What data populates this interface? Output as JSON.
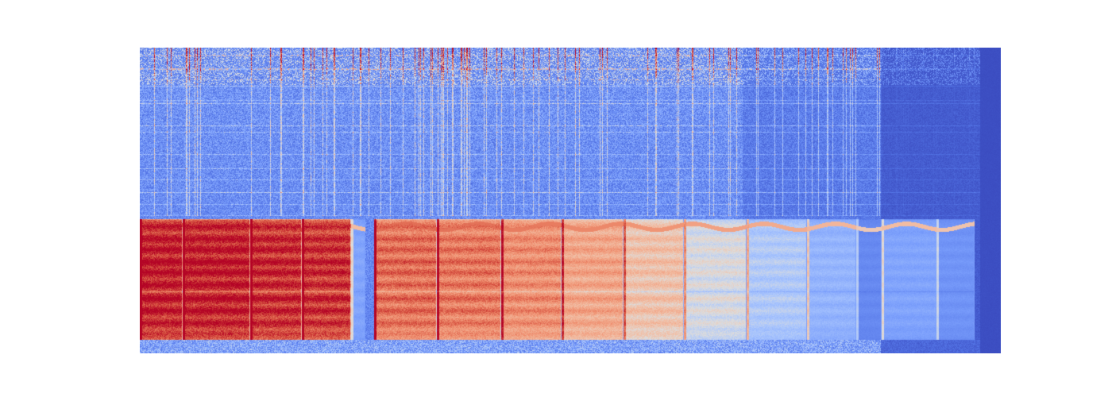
{
  "chart_data": {
    "type": "heatmap",
    "kind": "spectrogram",
    "colormap": "coolwarm",
    "colors": {
      "low": "#3b4cc0",
      "mid": "#dddddd",
      "high": "#b40426",
      "background": "#ffffff"
    },
    "title": "",
    "xlabel": "",
    "ylabel": "",
    "axes_visible": false,
    "grid": false,
    "legend": "none",
    "colorbar": "none",
    "note_events": [
      {
        "onset": 0.0,
        "offset": 0.05,
        "intensity": 0.95
      },
      {
        "onset": 0.05,
        "offset": 0.128,
        "intensity": 0.95
      },
      {
        "onset": 0.128,
        "offset": 0.188,
        "intensity": 0.93
      },
      {
        "onset": 0.188,
        "offset": 0.245,
        "intensity": 0.92
      },
      {
        "onset": 0.245,
        "offset": 0.262,
        "intensity": 0.3
      },
      {
        "onset": 0.272,
        "offset": 0.345,
        "intensity": 0.82
      },
      {
        "onset": 0.345,
        "offset": 0.42,
        "intensity": 0.8
      },
      {
        "onset": 0.42,
        "offset": 0.49,
        "intensity": 0.76
      },
      {
        "onset": 0.49,
        "offset": 0.562,
        "intensity": 0.7
      },
      {
        "onset": 0.562,
        "offset": 0.632,
        "intensity": 0.62
      },
      {
        "onset": 0.632,
        "offset": 0.705,
        "intensity": 0.52
      },
      {
        "onset": 0.705,
        "offset": 0.775,
        "intensity": 0.44
      },
      {
        "onset": 0.775,
        "offset": 0.832,
        "intensity": 0.36
      },
      {
        "onset": 0.832,
        "offset": 0.862,
        "intensity": 0.2
      },
      {
        "onset": 0.862,
        "offset": 0.925,
        "intensity": 0.3
      },
      {
        "onset": 0.925,
        "offset": 0.97,
        "intensity": 0.24
      }
    ],
    "time_range": [
      0,
      1
    ],
    "frequency_range": [
      0,
      1
    ]
  }
}
